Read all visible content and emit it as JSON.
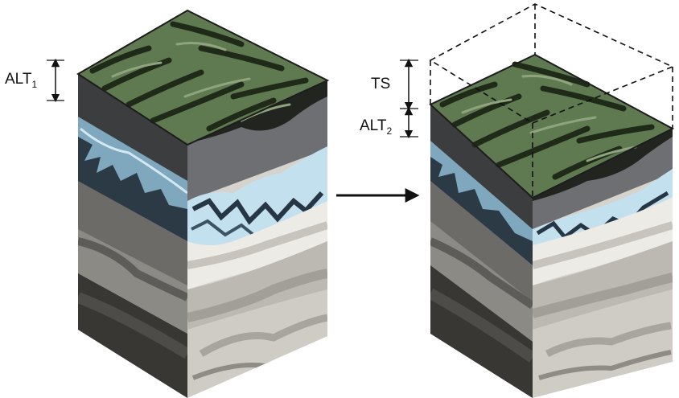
{
  "labels": {
    "alt1": {
      "main": "ALT",
      "sub": "1"
    },
    "ts": "TS",
    "alt2": {
      "main": "ALT",
      "sub": "2"
    }
  },
  "colors": {
    "vegetation": "#5f7a50",
    "vegetation_dark": "#1f2a18",
    "organic_soil": "#55575b",
    "ice_layer": "#b8d8e8",
    "ice_dark": "#2f4150",
    "mineral_light": "#d6d3cc",
    "mineral_mid": "#a3a09a",
    "mineral_dark": "#5c5b58",
    "bedrock": "#2e2d2b",
    "arrow": "#111111"
  },
  "icons": [
    "dimension-arrow-icon",
    "transition-arrow-icon"
  ]
}
